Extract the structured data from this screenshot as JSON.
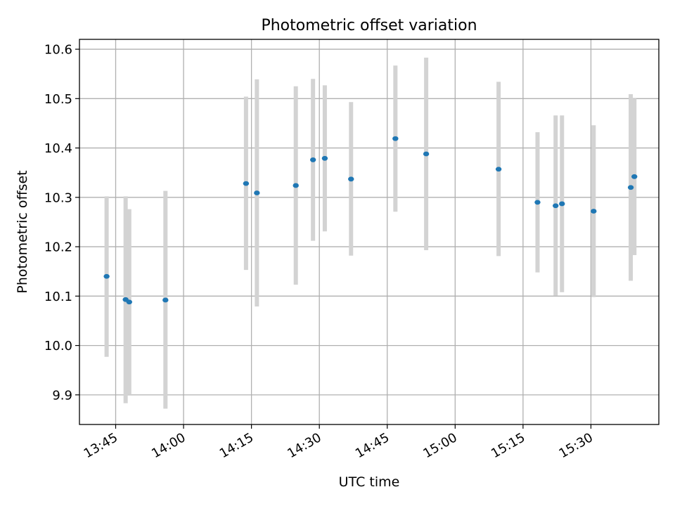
{
  "chart_data": {
    "type": "scatter",
    "title": "Photometric offset variation",
    "xlabel": "UTC time",
    "ylabel": "Photometric offset",
    "xlim": [
      "13:37",
      "15:45"
    ],
    "ylim": [
      9.84,
      10.62
    ],
    "grid": true,
    "x_ticks": [
      "13:45",
      "14:00",
      "14:15",
      "14:30",
      "14:45",
      "15:00",
      "15:15",
      "15:30"
    ],
    "y_ticks": [
      "9.9",
      "10.0",
      "10.1",
      "10.2",
      "10.3",
      "10.4",
      "10.5",
      "10.6"
    ],
    "point_color": "#1f77b4",
    "errorbar_color": "#d3d3d3",
    "points": [
      {
        "x": "13:43:00",
        "y": 10.14,
        "y_low": 9.977,
        "y_high": 10.302
      },
      {
        "x": "13:47:12",
        "y": 10.093,
        "y_low": 9.883,
        "y_high": 10.302
      },
      {
        "x": "13:48:00",
        "y": 10.088,
        "y_low": 9.9,
        "y_high": 10.276
      },
      {
        "x": "13:56:00",
        "y": 10.092,
        "y_low": 9.872,
        "y_high": 10.313
      },
      {
        "x": "14:13:48",
        "y": 10.328,
        "y_low": 10.153,
        "y_high": 10.504
      },
      {
        "x": "14:16:12",
        "y": 10.309,
        "y_low": 10.079,
        "y_high": 10.539
      },
      {
        "x": "14:24:48",
        "y": 10.324,
        "y_low": 10.123,
        "y_high": 10.525
      },
      {
        "x": "14:28:36",
        "y": 10.376,
        "y_low": 10.212,
        "y_high": 10.54
      },
      {
        "x": "14:31:12",
        "y": 10.379,
        "y_low": 10.231,
        "y_high": 10.527
      },
      {
        "x": "14:37:00",
        "y": 10.337,
        "y_low": 10.182,
        "y_high": 10.493
      },
      {
        "x": "14:46:48",
        "y": 10.419,
        "y_low": 10.271,
        "y_high": 10.567
      },
      {
        "x": "14:53:36",
        "y": 10.388,
        "y_low": 10.193,
        "y_high": 10.583
      },
      {
        "x": "15:09:36",
        "y": 10.357,
        "y_low": 10.181,
        "y_high": 10.534
      },
      {
        "x": "15:18:12",
        "y": 10.29,
        "y_low": 10.148,
        "y_high": 10.432
      },
      {
        "x": "15:22:12",
        "y": 10.283,
        "y_low": 10.101,
        "y_high": 10.466
      },
      {
        "x": "15:23:36",
        "y": 10.287,
        "y_low": 10.108,
        "y_high": 10.466
      },
      {
        "x": "15:30:36",
        "y": 10.272,
        "y_low": 10.098,
        "y_high": 10.446
      },
      {
        "x": "15:38:48",
        "y": 10.32,
        "y_low": 10.131,
        "y_high": 10.509
      },
      {
        "x": "15:39:36",
        "y": 10.342,
        "y_low": 10.183,
        "y_high": 10.5
      }
    ]
  }
}
